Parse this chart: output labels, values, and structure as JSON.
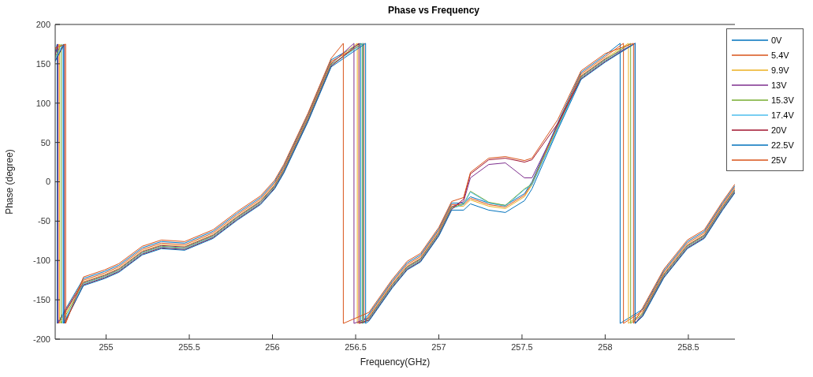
{
  "chart_data": {
    "type": "line",
    "title": "Phase vs Frequency",
    "xlabel": "Frequency(GHz)",
    "ylabel": "Phase (degree)",
    "xlim": [
      254.694,
      258.78
    ],
    "xticks": [
      255,
      255.5,
      256,
      256.5,
      257,
      257.5,
      258,
      258.5
    ],
    "ylim": [
      -200,
      200
    ],
    "yticks": [
      -200,
      -150,
      -100,
      -50,
      0,
      50,
      100,
      150,
      200
    ],
    "grid": false,
    "legend": "top right",
    "marker": "none",
    "line_style": "solid",
    "series": [
      {
        "name": "0V",
        "color": "#0072bd",
        "x": [
          254.694,
          254.706,
          254.706,
          254.864,
          254.991,
          255.077,
          255.217,
          255.332,
          255.472,
          255.643,
          255.787,
          255.928,
          256.013,
          256.068,
          256.213,
          256.353,
          256.53,
          256.53,
          256.58,
          256.72,
          256.81,
          256.89,
          257.0,
          257.077,
          257.149,
          257.19,
          257.3,
          257.4,
          257.515,
          257.56,
          257.715,
          257.855,
          258.0,
          258.09,
          258.09,
          258.226,
          258.353,
          258.494,
          258.596,
          258.706,
          258.78
        ],
        "values": [
          165,
          175,
          -180,
          -123,
          -114,
          -106,
          -84,
          -76,
          -78,
          -63,
          -40,
          -20,
          0,
          20,
          85,
          155,
          176,
          -180,
          -168,
          -126,
          -103,
          -93,
          -60,
          -27,
          -27,
          -19,
          -27,
          -30,
          -15,
          0,
          75,
          139,
          161,
          176,
          -180,
          -162,
          -113,
          -76,
          -63,
          -27,
          -5
        ]
      },
      {
        "name": "5.4V",
        "color": "#d95319",
        "x": [
          254.694,
          254.712,
          254.712,
          254.864,
          254.991,
          255.077,
          255.217,
          255.332,
          255.472,
          255.643,
          255.787,
          255.928,
          256.013,
          256.068,
          256.213,
          256.353,
          256.55,
          256.55,
          256.58,
          256.72,
          256.81,
          256.89,
          257.0,
          257.077,
          257.149,
          257.19,
          257.3,
          257.4,
          257.515,
          257.56,
          257.715,
          257.855,
          258.0,
          258.11,
          258.11,
          258.226,
          258.353,
          258.494,
          258.596,
          258.706,
          258.78
        ],
        "values": [
          162,
          175,
          -180,
          -125,
          -116,
          -108,
          -86,
          -78,
          -80,
          -65,
          -42,
          -22,
          -2,
          18,
          83,
          153,
          176,
          -180,
          -170,
          -128,
          -105,
          -95,
          -62,
          -29,
          -29,
          -21,
          -29,
          -32,
          -17,
          -2,
          73,
          137,
          159,
          176,
          -180,
          -164,
          -115,
          -78,
          -65,
          -29,
          -7
        ]
      },
      {
        "name": "9.9V",
        "color": "#edb120",
        "x": [
          254.694,
          254.72,
          254.72,
          254.864,
          254.991,
          255.077,
          255.217,
          255.332,
          255.472,
          255.643,
          255.787,
          255.928,
          256.013,
          256.068,
          256.213,
          256.353,
          256.51,
          256.51,
          256.58,
          256.72,
          256.81,
          256.89,
          257.0,
          257.077,
          257.149,
          257.19,
          257.3,
          257.4,
          257.515,
          257.56,
          257.715,
          257.855,
          258.0,
          258.14,
          258.14,
          258.226,
          258.353,
          258.494,
          258.596,
          258.706,
          258.78
        ],
        "values": [
          168,
          175,
          -180,
          -127,
          -118,
          -110,
          -88,
          -80,
          -82,
          -67,
          -44,
          -24,
          -4,
          16,
          81,
          151,
          176,
          -180,
          -172,
          -130,
          -107,
          -97,
          -64,
          -31,
          -31,
          -23,
          -31,
          -34,
          -19,
          -4,
          71,
          135,
          157,
          176,
          -180,
          -166,
          -117,
          -80,
          -67,
          -31,
          -9
        ]
      },
      {
        "name": "13V",
        "color": "#7e2f8e",
        "x": [
          254.694,
          254.71,
          254.71,
          254.864,
          254.991,
          255.077,
          255.217,
          255.332,
          255.472,
          255.643,
          255.787,
          255.928,
          256.013,
          256.068,
          256.213,
          256.353,
          256.49,
          256.49,
          256.58,
          256.72,
          256.81,
          256.89,
          257.0,
          257.077,
          257.149,
          257.19,
          257.3,
          257.4,
          257.515,
          257.56,
          257.715,
          257.855,
          258.0,
          258.18,
          258.18,
          258.226,
          258.353,
          258.494,
          258.596,
          258.706,
          258.78
        ],
        "values": [
          160,
          175,
          -180,
          -128,
          -119,
          -111,
          -89,
          -81,
          -83,
          -68,
          -45,
          -25,
          -5,
          15,
          80,
          150,
          176,
          -180,
          -173,
          -131,
          -108,
          -98,
          -65,
          -32,
          -25,
          5,
          22,
          24,
          5,
          5,
          72,
          134,
          156,
          176,
          -180,
          -167,
          -118,
          -81,
          -68,
          -32,
          -10
        ]
      },
      {
        "name": "15.3V",
        "color": "#77ac30",
        "x": [
          254.694,
          254.73,
          254.73,
          254.864,
          254.991,
          255.077,
          255.217,
          255.332,
          255.472,
          255.643,
          255.787,
          255.928,
          256.013,
          256.068,
          256.213,
          256.353,
          256.54,
          256.54,
          256.58,
          256.72,
          256.81,
          256.89,
          257.0,
          257.077,
          257.149,
          257.19,
          257.3,
          257.4,
          257.515,
          257.56,
          257.715,
          257.855,
          258.0,
          258.153,
          258.153,
          258.226,
          258.353,
          258.494,
          258.596,
          258.706,
          258.78
        ],
        "values": [
          158,
          175,
          -180,
          -129,
          -120,
          -112,
          -90,
          -82,
          -84,
          -69,
          -46,
          -26,
          -6,
          14,
          79,
          149,
          176,
          -180,
          -174,
          -132,
          -109,
          -99,
          -66,
          -33,
          -28,
          -12,
          -26,
          -30,
          -9,
          -3,
          69,
          133,
          155,
          176,
          -180,
          -168,
          -119,
          -82,
          -69,
          -33,
          -11
        ]
      },
      {
        "name": "17.4V",
        "color": "#4dbeee",
        "x": [
          254.694,
          254.74,
          254.74,
          254.864,
          254.991,
          255.077,
          255.217,
          255.332,
          255.472,
          255.643,
          255.787,
          255.928,
          256.013,
          256.068,
          256.213,
          256.353,
          256.545,
          256.545,
          256.58,
          256.72,
          256.81,
          256.89,
          257.0,
          257.077,
          257.149,
          257.19,
          257.3,
          257.4,
          257.515,
          257.56,
          257.715,
          257.855,
          258.0,
          258.18,
          258.18,
          258.226,
          258.353,
          258.494,
          258.596,
          258.706,
          258.78
        ],
        "values": [
          156,
          175,
          -180,
          -130,
          -121,
          -113,
          -91,
          -83,
          -85,
          -70,
          -47,
          -27,
          -7,
          13,
          78,
          148,
          176,
          -180,
          -175,
          -133,
          -110,
          -100,
          -67,
          -34,
          -29,
          -13,
          -27,
          -31,
          -10,
          -4,
          68,
          132,
          154,
          176,
          -180,
          -169,
          -120,
          -83,
          -70,
          -34,
          -12
        ]
      },
      {
        "name": "20V",
        "color": "#a2142f",
        "x": [
          254.694,
          254.75,
          254.75,
          254.864,
          254.991,
          255.077,
          255.217,
          255.332,
          255.472,
          255.643,
          255.787,
          255.928,
          256.013,
          256.068,
          256.213,
          256.353,
          256.52,
          256.52,
          256.58,
          256.72,
          256.81,
          256.89,
          257.0,
          257.077,
          257.149,
          257.19,
          257.3,
          257.4,
          257.515,
          257.56,
          257.715,
          257.855,
          258.0,
          258.18,
          258.18,
          258.226,
          258.353,
          258.494,
          258.596,
          258.706,
          258.78
        ],
        "values": [
          154,
          175,
          -180,
          -131,
          -122,
          -114,
          -92,
          -84,
          -86,
          -71,
          -48,
          -28,
          -8,
          12,
          77,
          147,
          176,
          -180,
          -176,
          -134,
          -111,
          -101,
          -68,
          -35,
          -22,
          10,
          28,
          30,
          25,
          28,
          74,
          131,
          153,
          176,
          -180,
          -170,
          -121,
          -84,
          -71,
          -35,
          -13
        ]
      },
      {
        "name": "22.5V",
        "color": "#0072bd",
        "x": [
          254.694,
          254.745,
          254.745,
          254.864,
          254.991,
          255.077,
          255.217,
          255.332,
          255.472,
          255.643,
          255.787,
          255.928,
          256.013,
          256.068,
          256.213,
          256.353,
          256.56,
          256.56,
          256.58,
          256.72,
          256.81,
          256.89,
          257.0,
          257.077,
          257.149,
          257.19,
          257.3,
          257.4,
          257.515,
          257.56,
          257.715,
          257.855,
          258.0,
          258.18,
          258.18,
          258.226,
          258.353,
          258.494,
          258.596,
          258.706,
          258.78
        ],
        "values": [
          153,
          175,
          -180,
          -132,
          -123,
          -115,
          -93,
          -85,
          -87,
          -72,
          -49,
          -29,
          -9,
          11,
          76,
          146,
          176,
          -180,
          -177,
          -135,
          -112,
          -102,
          -69,
          -36,
          -36,
          -28,
          -36,
          -39,
          -24,
          -9,
          66,
          130,
          152,
          176,
          -180,
          -171,
          -122,
          -85,
          -72,
          -36,
          -14
        ]
      },
      {
        "name": "25V",
        "color": "#d95319",
        "x": [
          254.694,
          254.757,
          254.757,
          254.864,
          254.991,
          255.077,
          255.217,
          255.332,
          255.472,
          255.643,
          255.787,
          255.928,
          256.013,
          256.068,
          256.213,
          256.353,
          256.426,
          256.426,
          256.58,
          256.72,
          256.81,
          256.89,
          257.0,
          257.077,
          257.149,
          257.19,
          257.3,
          257.4,
          257.515,
          257.56,
          257.715,
          257.855,
          258.0,
          258.17,
          258.17,
          258.226,
          258.353,
          258.494,
          258.596,
          258.706,
          258.78
        ],
        "values": [
          170,
          175,
          -180,
          -121,
          -112,
          -104,
          -82,
          -74,
          -76,
          -61,
          -38,
          -18,
          2,
          22,
          87,
          157,
          176,
          -180,
          -166,
          -124,
          -101,
          -91,
          -58,
          -25,
          -20,
          12,
          30,
          32,
          27,
          30,
          79,
          141,
          163,
          176,
          -180,
          -160,
          -111,
          -74,
          -61,
          -25,
          -3
        ]
      }
    ]
  }
}
